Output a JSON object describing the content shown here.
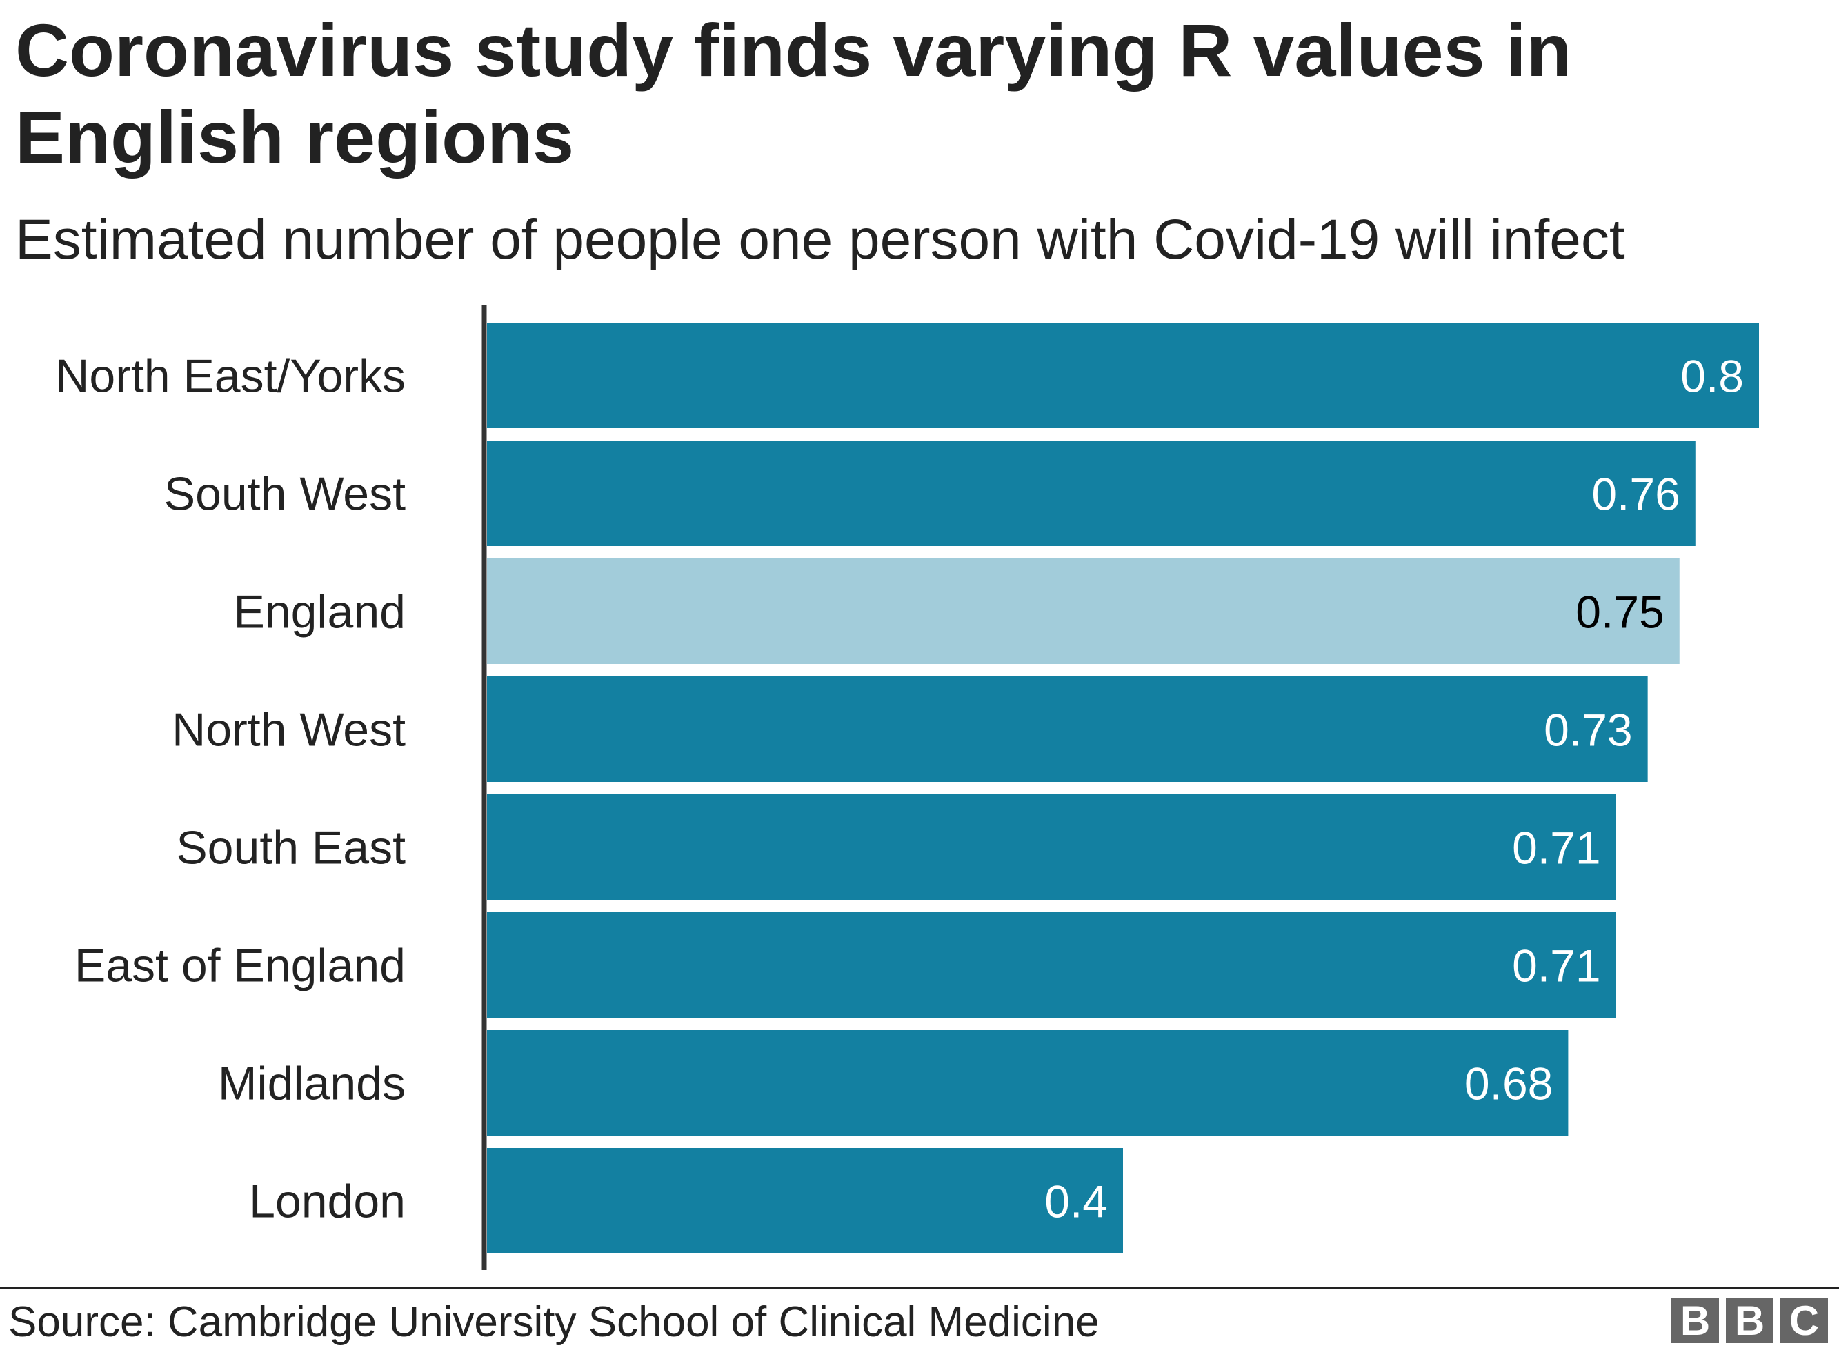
{
  "title": "Coronavirus study finds varying R values in English regions",
  "subtitle": "Estimated number of people one person with Covid-19 will infect",
  "source": "Source: Cambridge University School of Clinical Medicine",
  "logo": "BBC",
  "chart_data": {
    "type": "bar",
    "orientation": "horizontal",
    "categories": [
      "North East/Yorks",
      "South West",
      "England",
      "North West",
      "South East",
      "East of England",
      "Midlands",
      "London"
    ],
    "values": [
      0.8,
      0.76,
      0.75,
      0.73,
      0.71,
      0.71,
      0.68,
      0.4
    ],
    "value_labels": [
      "0.8",
      "0.76",
      "0.75",
      "0.73",
      "0.71",
      "0.71",
      "0.68",
      "0.4"
    ],
    "highlight": "England",
    "colors": {
      "bar": "#1380A1",
      "highlight": "#A2CCDA",
      "label_on_bar": "#ffffff",
      "label_on_highlight": "#000000"
    },
    "xlim": [
      0,
      0.8
    ],
    "grid": false,
    "legend": "none"
  }
}
